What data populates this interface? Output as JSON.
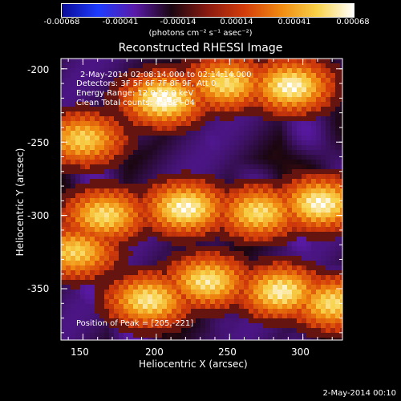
{
  "colorbar": {
    "ticks": [
      "-0.00068",
      "-0.00041",
      "-0.00014",
      "0.00014",
      "0.00041",
      "0.00068"
    ],
    "units": "(photons cm⁻² s⁻¹ asec⁻²)",
    "colors": [
      "#0a0a96",
      "#1e3cff",
      "#5a1aa8",
      "#1a0610",
      "#8a1a10",
      "#d33c0a",
      "#f08a10",
      "#f8d24a",
      "#ffffff"
    ]
  },
  "chart_data": {
    "type": "heatmap",
    "title": "Reconstructed RHESSI Image",
    "xlabel": "Heliocentric X (arcsec)",
    "ylabel": "Heliocentric Y (arcsec)",
    "xlim": [
      135,
      327
    ],
    "ylim": [
      -385,
      -193
    ],
    "xticks": [
      "150",
      "200",
      "250",
      "300"
    ],
    "yticks": [
      "-200",
      "-250",
      "-300",
      "-350"
    ],
    "annotations": {
      "time_range": "2-May-2014 02:08:14.000 to 02:14:14.000",
      "detectors": "Detectors: 3F 5F 6F 7F 8F 9F, Att 0",
      "energy_range": "Energy Range: 12.0-50.0 keV",
      "clean": "Clean    Total counts: 4.18E+04",
      "peak": "Position of Peak = [205,-221]"
    },
    "bright_regions": [
      {
        "x": 292,
        "y": -212,
        "level": 0.95
      },
      {
        "x": 248,
        "y": -210,
        "level": 0.8
      },
      {
        "x": 205,
        "y": -221,
        "level": 1.0
      },
      {
        "x": 150,
        "y": -248,
        "level": 0.75
      },
      {
        "x": 220,
        "y": -295,
        "level": 0.95
      },
      {
        "x": 270,
        "y": -298,
        "level": 0.8
      },
      {
        "x": 312,
        "y": -292,
        "level": 0.95
      },
      {
        "x": 165,
        "y": -300,
        "level": 0.8
      },
      {
        "x": 145,
        "y": -325,
        "level": 0.75
      },
      {
        "x": 195,
        "y": -358,
        "level": 0.85
      },
      {
        "x": 235,
        "y": -345,
        "level": 0.85
      },
      {
        "x": 285,
        "y": -352,
        "level": 0.9
      },
      {
        "x": 320,
        "y": -360,
        "level": 0.8
      }
    ]
  },
  "timestamp": "2-May-2014 00:10"
}
